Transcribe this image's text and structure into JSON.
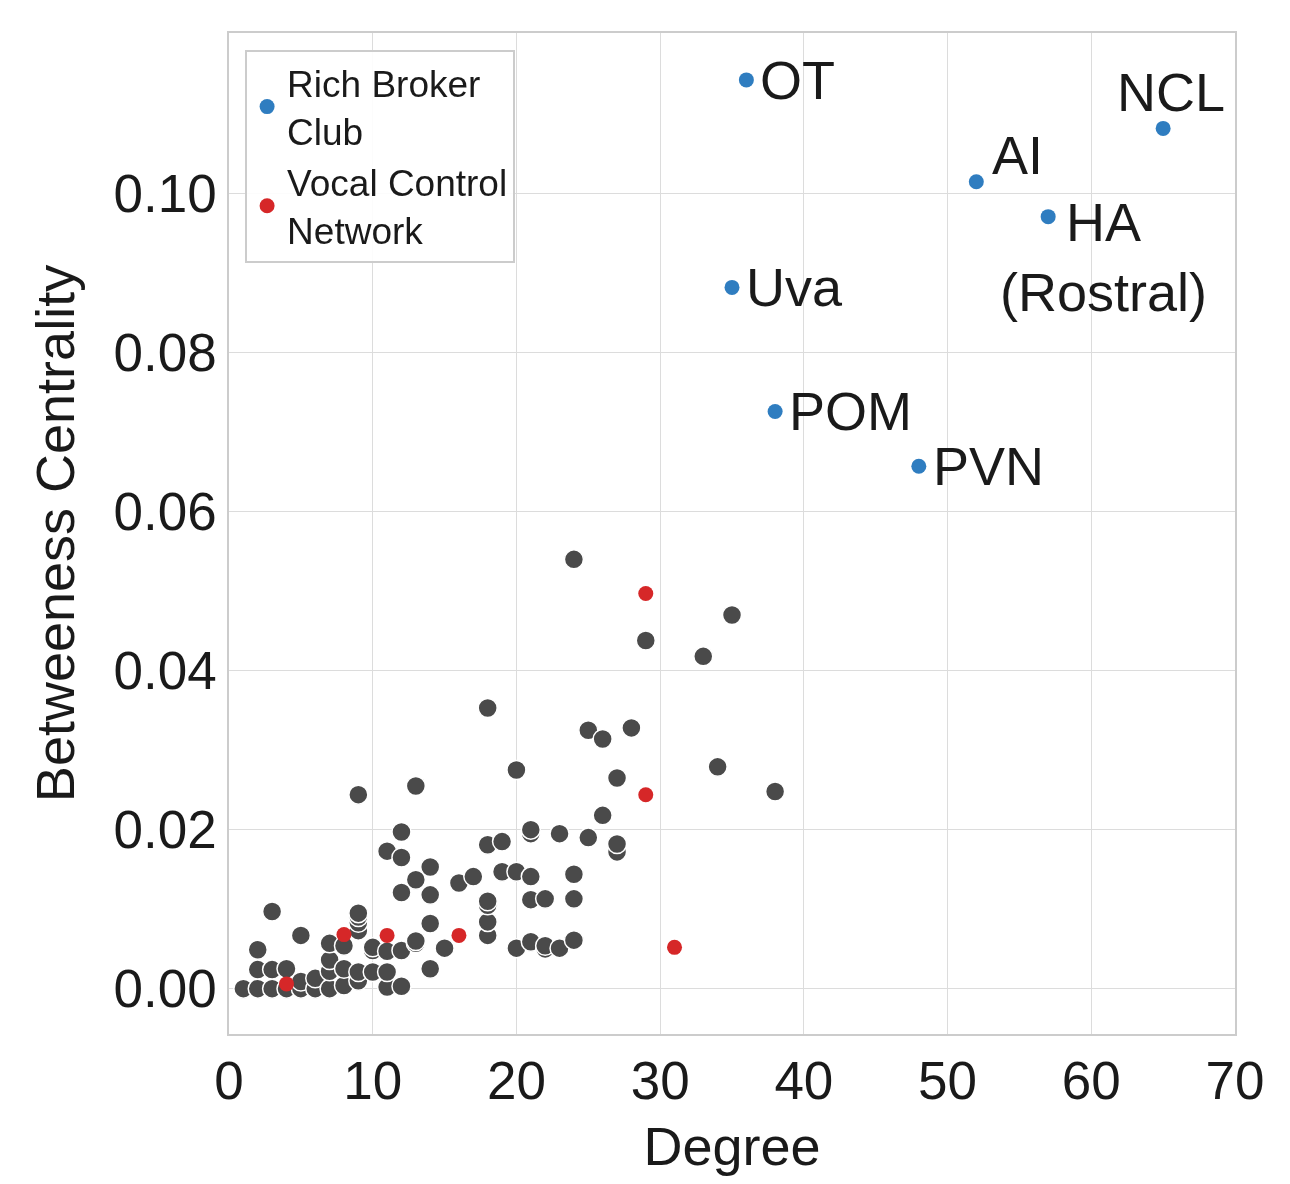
{
  "chart_data": {
    "type": "scatter",
    "xlabel": "Degree",
    "ylabel": "Betweeness Centrality",
    "xlim": [
      0,
      70
    ],
    "ylim": [
      -0.0057,
      0.1202
    ],
    "xticks": [
      0,
      10,
      20,
      30,
      40,
      50,
      60,
      70
    ],
    "yticks": [
      {
        "value": 0,
        "label": "0.00"
      },
      {
        "value": 0.02,
        "label": "0.02"
      },
      {
        "value": 0.04,
        "label": "0.04"
      },
      {
        "value": 0.06,
        "label": "0.06"
      },
      {
        "value": 0.08,
        "label": "0.08"
      },
      {
        "value": 0.1,
        "label": "0.10"
      }
    ],
    "grid": true,
    "legend": "top left",
    "marker": "circle",
    "series": [
      {
        "color": "#4a4a4a",
        "x": [
          1,
          2,
          2,
          2,
          3,
          3,
          3,
          4,
          4,
          5,
          5,
          5,
          6,
          6,
          7,
          7,
          7,
          7,
          8,
          8,
          8,
          9,
          9,
          9,
          9,
          9,
          9,
          9,
          10,
          10,
          10,
          11,
          11,
          11,
          11,
          12,
          12,
          12,
          12,
          12,
          13,
          13,
          13,
          13,
          14,
          14,
          14,
          14,
          15,
          16,
          17,
          18,
          18,
          18,
          18,
          18,
          18,
          19,
          19,
          20,
          20,
          20,
          21,
          21,
          21,
          21,
          21,
          22,
          22,
          22,
          23,
          23,
          24,
          24,
          24,
          24,
          25,
          25,
          26,
          26,
          27,
          27,
          27,
          28,
          29,
          33,
          34,
          35,
          38
        ],
        "values": [
          0.0,
          0.0,
          0.0024,
          0.0049,
          0.0,
          0.0024,
          0.0097,
          0.0,
          0.0025,
          0.0,
          0.0009,
          0.0067,
          0.0,
          0.0013,
          0.0,
          0.0022,
          0.0036,
          0.0057,
          0.0004,
          0.0025,
          0.0054,
          0.001,
          0.0021,
          0.0073,
          0.0083,
          0.009,
          0.0095,
          0.0244,
          0.0021,
          0.0048,
          0.0052,
          0.0002,
          0.0021,
          0.0047,
          0.0173,
          0.0003,
          0.0048,
          0.0121,
          0.0165,
          0.0197,
          0.0057,
          0.006,
          0.0137,
          0.0255,
          0.0025,
          0.0082,
          0.0118,
          0.0153,
          0.0051,
          0.0133,
          0.0141,
          0.0067,
          0.0084,
          0.0105,
          0.011,
          0.0181,
          0.0353,
          0.0147,
          0.0185,
          0.0051,
          0.0147,
          0.0275,
          0.0059,
          0.0112,
          0.0141,
          0.0195,
          0.02,
          0.005,
          0.0054,
          0.0113,
          0.0051,
          0.0195,
          0.0061,
          0.0113,
          0.0144,
          0.054,
          0.019,
          0.0325,
          0.0218,
          0.0314,
          0.0172,
          0.0182,
          0.0265,
          0.0328,
          0.0438,
          0.0418,
          0.0279,
          0.047,
          0.0248
        ]
      },
      {
        "name": "Rich Broker Club",
        "color": "#2f7dc0",
        "x": [
          36,
          65,
          52,
          57,
          35,
          38,
          48
        ],
        "values": [
          0.1143,
          0.1082,
          0.1015,
          0.0971,
          0.0882,
          0.0726,
          0.0657
        ]
      },
      {
        "name": "Vocal Control Network",
        "color": "#d62728",
        "x": [
          29,
          29,
          31,
          16,
          11,
          8,
          4
        ],
        "values": [
          0.0497,
          0.0244,
          0.0052,
          0.0067,
          0.0067,
          0.0068,
          0.0006
        ]
      }
    ],
    "annotations": [
      {
        "text": "OT",
        "x": 36,
        "y": 0.1143
      },
      {
        "text": "NCL",
        "x": 65,
        "y": 0.1082
      },
      {
        "text": "AI",
        "x": 52,
        "y": 0.1015
      },
      {
        "text": "HA\n(Rostral)",
        "x": 57,
        "y": 0.0971
      },
      {
        "text": "Uva",
        "x": 35,
        "y": 0.0882
      },
      {
        "text": "POM",
        "x": 38,
        "y": 0.0726
      },
      {
        "text": "PVN",
        "x": 48,
        "y": 0.0657
      }
    ]
  }
}
